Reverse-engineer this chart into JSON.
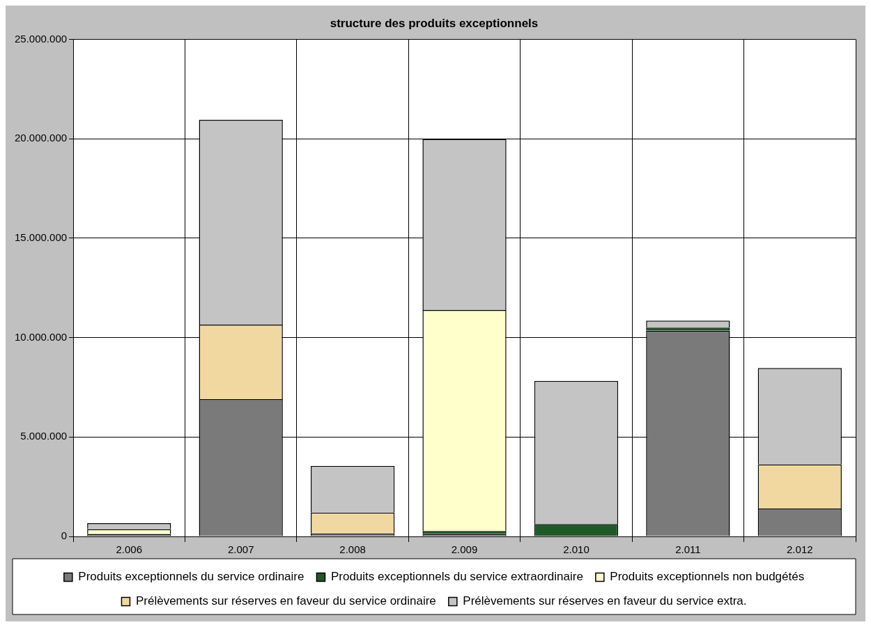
{
  "chart_data": {
    "type": "bar",
    "title": "structure des produits exceptionnels",
    "categories": [
      "2.006",
      "2.007",
      "2.008",
      "2.009",
      "2.010",
      "2.011",
      "2.012"
    ],
    "stacked": true,
    "series": [
      {
        "name": "Produits exceptionnels du service ordinaire",
        "color": "#7a7a7a",
        "values": [
          120000,
          6900000,
          150000,
          120000,
          0,
          10350000,
          1400000
        ]
      },
      {
        "name": "Produits exceptionnels du service extraordinaire",
        "color": "#1e5a28",
        "values": [
          0,
          0,
          0,
          150000,
          620000,
          150000,
          0
        ]
      },
      {
        "name": "Produits exceptionnels non budgétés",
        "color": "#ffffcc",
        "values": [
          250000,
          0,
          0,
          11120000,
          0,
          0,
          0
        ]
      },
      {
        "name": "Prélèvements sur réserves en faveur du service ordinaire",
        "color": "#f0d8a0",
        "values": [
          0,
          3750000,
          1050000,
          0,
          0,
          0,
          2230000
        ]
      },
      {
        "name": "Prélèvements sur réserves en faveur du service extra.",
        "color": "#c4c4c4",
        "values": [
          300000,
          10300000,
          2350000,
          8600000,
          7200000,
          350000,
          4840000
        ]
      }
    ],
    "ylim": [
      0,
      25000000
    ],
    "yticks": [
      0,
      {
        "value": 5000000,
        "label": "5.000.000"
      },
      {
        "value": 10000000,
        "label": "10.000.000"
      },
      {
        "value": 15000000,
        "label": "15.000.000"
      },
      {
        "value": 20000000,
        "label": "20.000.000"
      },
      {
        "value": 25000000,
        "label": "25.000.000"
      }
    ],
    "grid": true,
    "legend": "bottom"
  }
}
